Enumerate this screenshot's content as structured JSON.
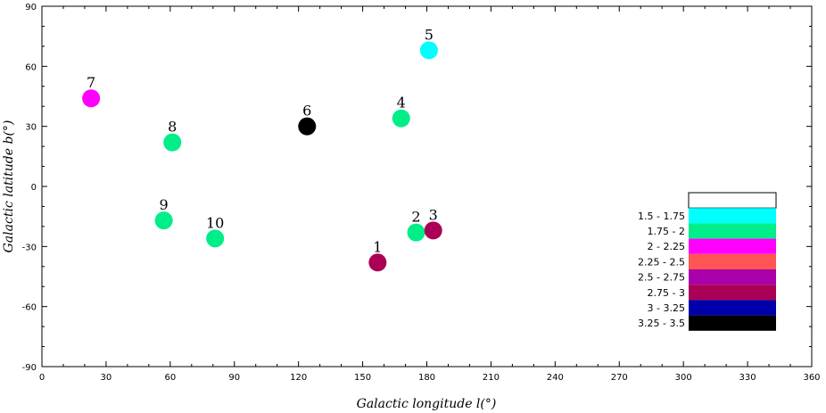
{
  "chart_data": {
    "type": "scatter",
    "xlabel": "Galactic longitude l(°)",
    "ylabel": "Galactic latitude b(°)",
    "xlim": [
      0,
      360
    ],
    "ylim": [
      -90,
      90
    ],
    "xticks": [
      0,
      30,
      60,
      90,
      120,
      150,
      180,
      210,
      240,
      270,
      300,
      330,
      360
    ],
    "yticks": [
      -90,
      -60,
      -30,
      0,
      30,
      60,
      90
    ],
    "grid": false,
    "legend_position": "right",
    "legend": [
      {
        "label": "",
        "color": "#ffffff"
      },
      {
        "label": "1.5 - 1.75",
        "color": "#00ffff"
      },
      {
        "label": "1.75 - 2",
        "color": "#00ee88"
      },
      {
        "label": "2 - 2.25",
        "color": "#ff00ff"
      },
      {
        "label": "2.25 - 2.5",
        "color": "#ff5555"
      },
      {
        "label": "2.5 - 2.75",
        "color": "#aa00aa"
      },
      {
        "label": "2.75 - 3",
        "color": "#aa0055"
      },
      {
        "label": "3 - 3.25",
        "color": "#0000aa"
      },
      {
        "label": "3.25 - 3.5",
        "color": "#000000"
      }
    ],
    "points": [
      {
        "label": "1",
        "x": 157,
        "y": -38,
        "color": "#aa0055"
      },
      {
        "label": "2",
        "x": 175,
        "y": -23,
        "color": "#00ee88"
      },
      {
        "label": "3",
        "x": 183,
        "y": -22,
        "color": "#aa0055"
      },
      {
        "label": "4",
        "x": 168,
        "y": 34,
        "color": "#00ee88"
      },
      {
        "label": "5",
        "x": 181,
        "y": 68,
        "color": "#00ffff"
      },
      {
        "label": "6",
        "x": 124,
        "y": 30,
        "color": "#000000"
      },
      {
        "label": "7",
        "x": 23,
        "y": 44,
        "color": "#ff00ff"
      },
      {
        "label": "8",
        "x": 61,
        "y": 22,
        "color": "#00ee88"
      },
      {
        "label": "9",
        "x": 57,
        "y": -17,
        "color": "#00ee88"
      },
      {
        "label": "10",
        "x": 81,
        "y": -26,
        "color": "#00ee88"
      }
    ]
  }
}
